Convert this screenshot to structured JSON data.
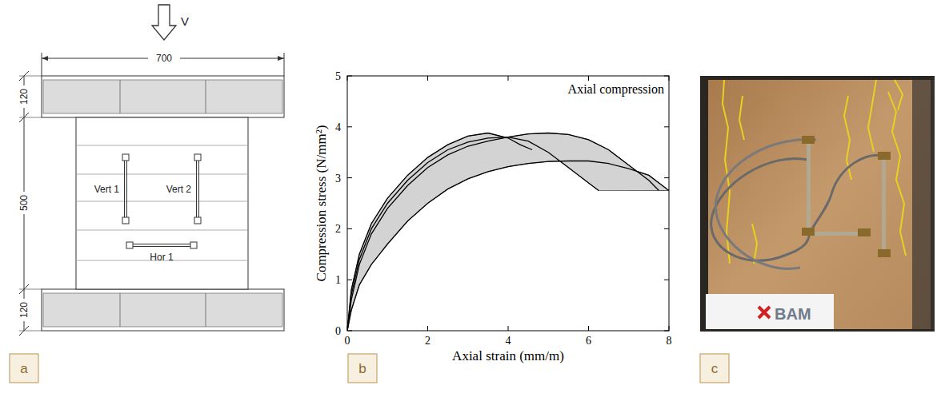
{
  "chart_data": {
    "type": "line",
    "annotation": "Axial compression",
    "x_label": "Axial strain (mm/m)",
    "y_label": "Compression stress (N/mm²)",
    "xlim": [
      0,
      8
    ],
    "ylim": [
      0,
      5
    ],
    "xticks": [
      0,
      2,
      4,
      6,
      8
    ],
    "yticks": [
      0,
      1,
      2,
      3,
      4,
      5
    ],
    "series": [
      {
        "color": "#000000",
        "x": [
          0,
          0.1,
          0.3,
          0.6,
          1,
          1.5,
          2,
          2.5,
          3,
          3.5,
          4,
          4.3,
          4.6
        ],
        "values": [
          0,
          0.8,
          1.5,
          2.1,
          2.6,
          3.05,
          3.4,
          3.65,
          3.82,
          3.88,
          3.78,
          3.65,
          3.55
        ]
      },
      {
        "color": "#000000",
        "x": [
          0,
          0.1,
          0.3,
          0.6,
          1,
          1.5,
          2,
          2.5,
          3,
          3.5,
          4,
          4.5,
          5,
          5.5,
          6,
          6.25
        ],
        "values": [
          0,
          0.7,
          1.4,
          2.0,
          2.5,
          2.95,
          3.3,
          3.55,
          3.7,
          3.78,
          3.8,
          3.72,
          3.5,
          3.2,
          2.9,
          2.75
        ]
      },
      {
        "color": "#000000",
        "x": [
          0,
          0.1,
          0.3,
          0.6,
          1,
          1.5,
          2,
          2.5,
          3,
          3.5,
          4,
          4.5,
          5,
          5.5,
          6,
          6.5,
          7,
          7.5,
          7.75
        ],
        "values": [
          0,
          0.6,
          1.3,
          1.9,
          2.4,
          2.85,
          3.2,
          3.45,
          3.62,
          3.72,
          3.8,
          3.86,
          3.88,
          3.85,
          3.75,
          3.55,
          3.25,
          2.95,
          2.75
        ]
      },
      {
        "color": "#000000",
        "x": [
          0,
          0.1,
          0.3,
          0.6,
          0.8,
          1,
          1.5,
          2,
          2.5,
          3,
          3.5,
          4,
          4.5,
          5,
          5.5,
          6,
          6.5,
          7,
          7.5,
          8
        ],
        "values": [
          0,
          0.4,
          0.9,
          1.3,
          1.5,
          1.7,
          2.15,
          2.5,
          2.78,
          2.98,
          3.12,
          3.22,
          3.28,
          3.32,
          3.33,
          3.33,
          3.28,
          3.18,
          3.05,
          2.75
        ]
      }
    ]
  },
  "diagram": {
    "load": "V",
    "dimensions": {
      "width": 700,
      "top_plate": 120,
      "wall_height": 500,
      "bottom_plate": 120
    },
    "gauges": [
      "Vert 1",
      "Vert 2",
      "Hor 1"
    ]
  },
  "photo": {
    "logo": "BAM"
  },
  "panel_labels": [
    "a",
    "b",
    "c"
  ]
}
